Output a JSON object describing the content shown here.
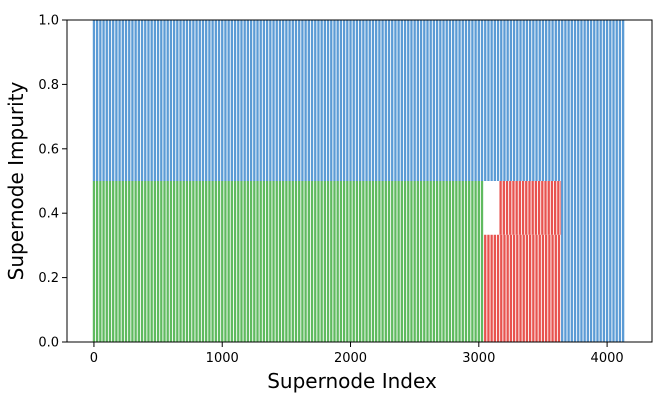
{
  "chart_data": {
    "type": "bar",
    "xlabel": "Supernode Index",
    "ylabel": "Supernode Impurity",
    "xlim": [
      -210,
      4350
    ],
    "ylim": [
      0,
      1
    ],
    "xticks": [
      "0",
      "1000",
      "2000",
      "3000",
      "4000"
    ],
    "yticks": [
      "0.0",
      "0.2",
      "0.4",
      "0.6",
      "0.8",
      "1.0"
    ],
    "grid": false,
    "legend": "none",
    "bar_spacing": 25,
    "stacked_segments": [
      {
        "color": "#5fba5f",
        "x_start": 0,
        "x_end": 3050,
        "ylim_bottom": 0,
        "ylim_top": 0.5
      },
      {
        "color": "#e8534f",
        "x_start": 3050,
        "x_end": 3650,
        "ylim_bottom": 0,
        "ylim_top": 0.333
      },
      {
        "color": "#e8534f",
        "x_start": 3170,
        "x_end": 3650,
        "ylim_bottom": 0.333,
        "ylim_top": 0.5
      },
      {
        "color": "#5b9bd5",
        "x_start": 0,
        "x_end": 4150,
        "ylim_bottom": 0.5,
        "ylim_top": 1.0
      },
      {
        "color": "#5b9bd5",
        "x_start": 3650,
        "x_end": 4150,
        "ylim_bottom": 0,
        "ylim_top": 0.5
      }
    ],
    "colors": {
      "green": "#5fba5f",
      "red": "#e8534f",
      "blue": "#5b9bd5"
    }
  }
}
